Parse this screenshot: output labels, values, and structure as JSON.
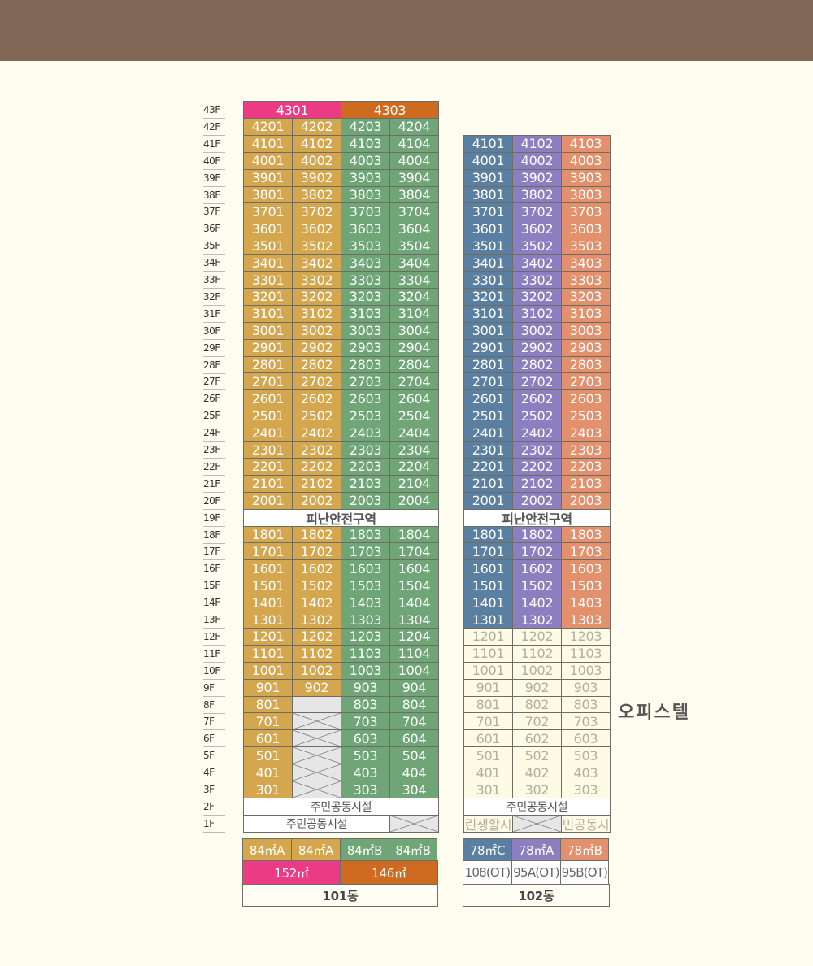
{
  "floors": [
    "43F",
    "42F",
    "41F",
    "40F",
    "39F",
    "38F",
    "37F",
    "36F",
    "35F",
    "34F",
    "33F",
    "32F",
    "31F",
    "30F",
    "29F",
    "28F",
    "27F",
    "26F",
    "25F",
    "24F",
    "23F",
    "22F",
    "21F",
    "20F",
    "19F",
    "18F",
    "17F",
    "16F",
    "15F",
    "14F",
    "13F",
    "12F",
    "11F",
    "10F",
    "9F",
    "8F",
    "7F",
    "6F",
    "5F",
    "4F",
    "3F",
    "2F",
    "1F"
  ],
  "b101": {
    "name": "101동",
    "rows": [
      [
        "4301",
        "4303"
      ],
      [
        "4201",
        "4202",
        "4203",
        "4204"
      ],
      [
        "4101",
        "4102",
        "4103",
        "4104"
      ],
      [
        "4001",
        "4002",
        "4003",
        "4004"
      ],
      [
        "3901",
        "3902",
        "3903",
        "3904"
      ],
      [
        "3801",
        "3802",
        "3803",
        "3804"
      ],
      [
        "3701",
        "3702",
        "3703",
        "3704"
      ],
      [
        "3601",
        "3602",
        "3603",
        "3604"
      ],
      [
        "3501",
        "3502",
        "3503",
        "3504"
      ],
      [
        "3401",
        "3402",
        "3403",
        "3404"
      ],
      [
        "3301",
        "3302",
        "3303",
        "3304"
      ],
      [
        "3201",
        "3202",
        "3203",
        "3204"
      ],
      [
        "3101",
        "3102",
        "3103",
        "3104"
      ],
      [
        "3001",
        "3002",
        "3003",
        "3004"
      ],
      [
        "2901",
        "2902",
        "2903",
        "2904"
      ],
      [
        "2801",
        "2802",
        "2803",
        "2804"
      ],
      [
        "2701",
        "2702",
        "2703",
        "2704"
      ],
      [
        "2601",
        "2602",
        "2603",
        "2604"
      ],
      [
        "2501",
        "2502",
        "2503",
        "2504"
      ],
      [
        "2401",
        "2402",
        "2403",
        "2404"
      ],
      [
        "2301",
        "2302",
        "2303",
        "2304"
      ],
      [
        "2201",
        "2202",
        "2203",
        "2204"
      ],
      [
        "2101",
        "2102",
        "2103",
        "2104"
      ],
      [
        "2001",
        "2002",
        "2003",
        "2004"
      ],
      [
        "피난안전구역"
      ],
      [
        "1801",
        "1802",
        "1803",
        "1804"
      ],
      [
        "1701",
        "1702",
        "1703",
        "1704"
      ],
      [
        "1601",
        "1602",
        "1603",
        "1604"
      ],
      [
        "1501",
        "1502",
        "1503",
        "1504"
      ],
      [
        "1401",
        "1402",
        "1403",
        "1404"
      ],
      [
        "1301",
        "1302",
        "1303",
        "1304"
      ],
      [
        "1201",
        "1202",
        "1203",
        "1204"
      ],
      [
        "1101",
        "1102",
        "1103",
        "1104"
      ],
      [
        "1001",
        "1002",
        "1003",
        "1004"
      ],
      [
        "901",
        "902",
        "903",
        "904"
      ],
      [
        "801",
        "",
        "803",
        "804"
      ],
      [
        "701",
        "X",
        "703",
        "704"
      ],
      [
        "601",
        "X",
        "603",
        "604"
      ],
      [
        "501",
        "X",
        "503",
        "504"
      ],
      [
        "401",
        "X",
        "403",
        "404"
      ],
      [
        "301",
        "X",
        "303",
        "304"
      ],
      [
        "주민공동시설"
      ],
      [
        "주민공동시설",
        "X"
      ]
    ],
    "types": [
      "84㎡A",
      "84㎡A",
      "84㎡B",
      "84㎡B"
    ],
    "sizes": [
      "152㎡",
      "146㎡"
    ]
  },
  "b102": {
    "name": "102동",
    "rows": [
      [
        "4101",
        "4102",
        "4103"
      ],
      [
        "4001",
        "4002",
        "4003"
      ],
      [
        "3901",
        "3902",
        "3903"
      ],
      [
        "3801",
        "3802",
        "3803"
      ],
      [
        "3701",
        "3702",
        "3703"
      ],
      [
        "3601",
        "3602",
        "3603"
      ],
      [
        "3501",
        "3502",
        "3503"
      ],
      [
        "3401",
        "3402",
        "3403"
      ],
      [
        "3301",
        "3302",
        "3303"
      ],
      [
        "3201",
        "3202",
        "3203"
      ],
      [
        "3101",
        "3102",
        "3103"
      ],
      [
        "3001",
        "3002",
        "3003"
      ],
      [
        "2901",
        "2902",
        "2903"
      ],
      [
        "2801",
        "2802",
        "2803"
      ],
      [
        "2701",
        "2702",
        "2703"
      ],
      [
        "2601",
        "2602",
        "2603"
      ],
      [
        "2501",
        "2502",
        "2503"
      ],
      [
        "2401",
        "2402",
        "2403"
      ],
      [
        "2301",
        "2302",
        "2303"
      ],
      [
        "2201",
        "2202",
        "2203"
      ],
      [
        "2101",
        "2102",
        "2103"
      ],
      [
        "2001",
        "2002",
        "2003"
      ],
      [
        "피난안전구역"
      ],
      [
        "1801",
        "1802",
        "1803"
      ],
      [
        "1701",
        "1702",
        "1703"
      ],
      [
        "1601",
        "1602",
        "1603"
      ],
      [
        "1501",
        "1502",
        "1503"
      ],
      [
        "1401",
        "1402",
        "1403"
      ],
      [
        "1301",
        "1302",
        "1303"
      ],
      [
        "1201",
        "1202",
        "1203"
      ],
      [
        "1101",
        "1102",
        "1103"
      ],
      [
        "1001",
        "1002",
        "1003"
      ],
      [
        "901",
        "902",
        "903"
      ],
      [
        "801",
        "802",
        "803"
      ],
      [
        "701",
        "702",
        "703"
      ],
      [
        "601",
        "602",
        "603"
      ],
      [
        "501",
        "502",
        "503"
      ],
      [
        "401",
        "402",
        "403"
      ],
      [
        "301",
        "302",
        "303"
      ],
      [
        "주민공동시설"
      ],
      [
        "근린생활시설",
        "X",
        "주민공동시설"
      ]
    ],
    "office_label": "오피스텔",
    "types": [
      "78㎡C",
      "78㎡A",
      "78㎡B"
    ],
    "ot": [
      "108(OT)",
      "95A(OT)",
      "95B(OT)"
    ]
  },
  "colors": {
    "gold": "#d4a74f",
    "green": "#6fa577",
    "pink": "#ea3b84",
    "orange": "#cf6a21",
    "blue": "#5a7fa0",
    "purple": "#8b7fc0",
    "salmon": "#e3906c"
  }
}
